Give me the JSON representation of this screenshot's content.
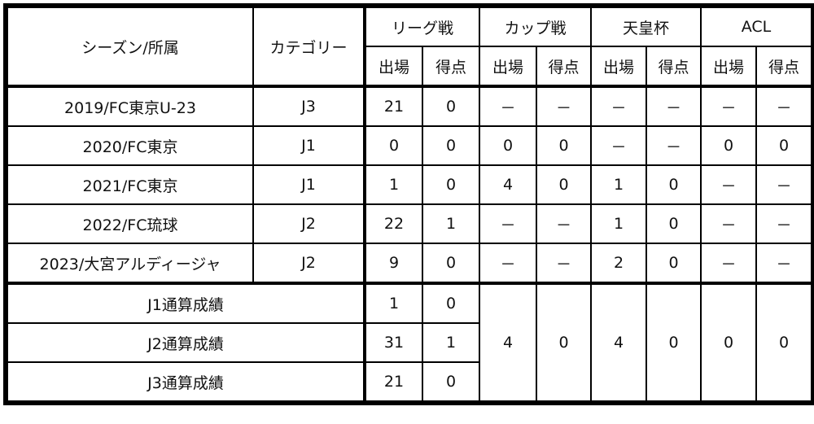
{
  "header": {
    "season": "シーズン/所属",
    "category": "カテゴリー",
    "competitions": [
      "リーグ戦",
      "カップ戦",
      "天皇杯",
      "ACL"
    ],
    "apps": "出場",
    "goals": "得点"
  },
  "rows": [
    {
      "season": "2019/FC東京U-23",
      "category": "J3",
      "values": [
        "21",
        "0",
        "－",
        "－",
        "－",
        "－",
        "－",
        "－"
      ]
    },
    {
      "season": "2020/FC東京",
      "category": "J1",
      "values": [
        "0",
        "0",
        "0",
        "0",
        "－",
        "－",
        "0",
        "0"
      ]
    },
    {
      "season": "2021/FC東京",
      "category": "J1",
      "values": [
        "1",
        "0",
        "4",
        "0",
        "1",
        "0",
        "－",
        "－"
      ]
    },
    {
      "season": "2022/FC琉球",
      "category": "J2",
      "values": [
        "22",
        "1",
        "－",
        "－",
        "1",
        "0",
        "－",
        "－"
      ]
    },
    {
      "season": "2023/大宮アルディージャ",
      "category": "J2",
      "values": [
        "9",
        "0",
        "－",
        "－",
        "2",
        "0",
        "－",
        "－"
      ]
    }
  ],
  "totals": [
    {
      "label": "J1通算成績",
      "league_apps": "1",
      "league_goals": "0"
    },
    {
      "label": "J2通算成績",
      "league_apps": "31",
      "league_goals": "1"
    },
    {
      "label": "J3通算成績",
      "league_apps": "21",
      "league_goals": "0"
    }
  ],
  "totals_merged": [
    "4",
    "0",
    "4",
    "0",
    "0",
    "0"
  ]
}
